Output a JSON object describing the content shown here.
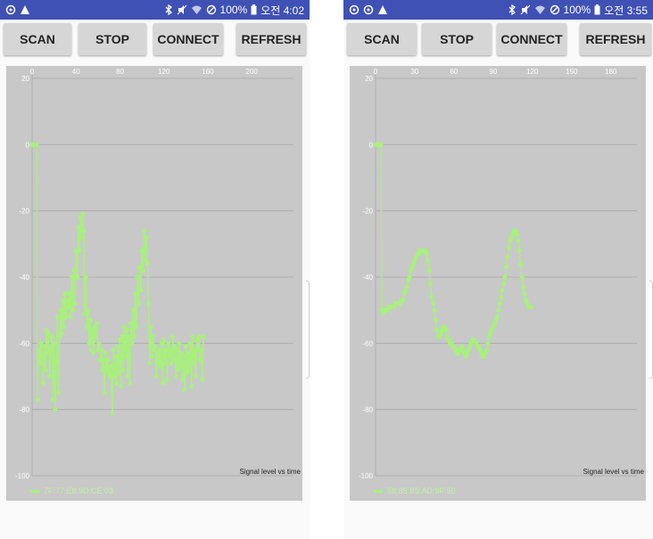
{
  "phones": [
    {
      "status": {
        "time": "오전 4:02",
        "battery": "100%"
      },
      "buttons": {
        "scan": "SCAN",
        "stop": "STOP",
        "connect": "CONNECT",
        "refresh": "REFRESH"
      },
      "chart_data": {
        "type": "line",
        "description": "Signal level vs time",
        "legend": "7F:77:E8:9D:CE:03",
        "x_ticks": [
          "0",
          "40",
          "80",
          "120",
          "160",
          "200"
        ],
        "y_ticks": [
          "20",
          "0",
          "-20",
          "-40",
          "-60",
          "-80",
          "-100"
        ],
        "xlim": [
          0,
          238
        ],
        "ylim": [
          -100,
          20
        ],
        "color": "#a8f07c",
        "series": [
          {
            "y": [
              0,
              0,
              0,
              0,
              0,
              -77,
              -62,
              -66,
              -60,
              -64,
              -72,
              -61,
              -68,
              -56,
              -63,
              -57,
              -70,
              -62,
              -58,
              -77,
              -60,
              -80,
              -65,
              -52,
              -75,
              -58,
              -50,
              -57,
              -47,
              -55,
              -45,
              -52,
              -47,
              -49,
              -45,
              -52,
              -40,
              -50,
              -38,
              -48,
              -32,
              -40,
              -25,
              -32,
              -22,
              -28,
              -21,
              -26,
              -51,
              -40,
              -55,
              -50,
              -60,
              -53,
              -62,
              -56,
              -63,
              -55,
              -58,
              -54,
              -62,
              -60,
              -65,
              -62,
              -68,
              -65,
              -75,
              -63,
              -68,
              -65,
              -69,
              -70,
              -67,
              -81,
              -62,
              -70,
              -64,
              -72,
              -61,
              -69,
              -59,
              -73,
              -58,
              -68,
              -55,
              -64,
              -56,
              -70,
              -58,
              -72,
              -54,
              -60,
              -50,
              -58,
              -45,
              -55,
              -40,
              -48,
              -37,
              -44,
              -32,
              -38,
              -26,
              -35,
              -28,
              -36,
              -48,
              -66,
              -55,
              -64,
              -58,
              -62,
              -61,
              -70,
              -63,
              -66,
              -62,
              -67,
              -60,
              -72,
              -59,
              -66,
              -62,
              -71,
              -60,
              -64,
              -62,
              -66,
              -58,
              -65,
              -61,
              -70,
              -62,
              -68,
              -60,
              -67,
              -63,
              -71,
              -64,
              -74,
              -61,
              -69,
              -63,
              -68,
              -60,
              -73,
              -58,
              -66,
              -62,
              -70,
              -59,
              -62,
              -58,
              -65,
              -62,
              -71,
              -58
            ]
          }
        ]
      }
    },
    {
      "status": {
        "time": "오전 3:55",
        "battery": "100%"
      },
      "buttons": {
        "scan": "SCAN",
        "stop": "STOP",
        "connect": "CONNECT",
        "refresh": "REFRESH"
      },
      "chart_data": {
        "type": "line",
        "description": "Signal level vs time",
        "legend": "58:85:B5:AD:9F:50",
        "x_ticks": [
          "0",
          "30",
          "60",
          "90",
          "120",
          "150",
          "180"
        ],
        "y_ticks": [
          "20",
          "0",
          "-20",
          "-40",
          "-60",
          "-80",
          "-100"
        ],
        "xlim": [
          0,
          200
        ],
        "ylim": [
          -100,
          20
        ],
        "color": "#a8f07c",
        "series": [
          {
            "y": [
              0,
              0,
              0,
              0,
              0,
              -50,
              -51,
              -50,
              -50,
              -50,
              -49,
              -49,
              -49,
              -49,
              -49,
              -48,
              -48,
              -48,
              -48,
              -48,
              -47,
              -47,
              -45,
              -44,
              -43,
              -41,
              -40,
              -38,
              -37,
              -36,
              -35,
              -34,
              -33,
              -33,
              -32,
              -32,
              -32,
              -32,
              -32,
              -33,
              -35,
              -38,
              -42,
              -46,
              -48,
              -50,
              -53,
              -56,
              -58,
              -58,
              -57,
              -56,
              -55,
              -55,
              -56,
              -58,
              -59,
              -60,
              -60,
              -61,
              -61,
              -62,
              -63,
              -63,
              -62,
              -62,
              -61,
              -62,
              -63,
              -64,
              -63,
              -62,
              -61,
              -60,
              -59,
              -59,
              -59,
              -60,
              -61,
              -61,
              -62,
              -63,
              -64,
              -64,
              -63,
              -62,
              -60,
              -58,
              -57,
              -56,
              -55,
              -54,
              -53,
              -52,
              -50,
              -48,
              -46,
              -44,
              -42,
              -40,
              -37,
              -34,
              -31,
              -29,
              -28,
              -27,
              -26,
              -26,
              -27,
              -29,
              -32,
              -36,
              -40,
              -43,
              -45,
              -47,
              -48,
              -49,
              -49,
              -49
            ]
          }
        ]
      }
    }
  ]
}
